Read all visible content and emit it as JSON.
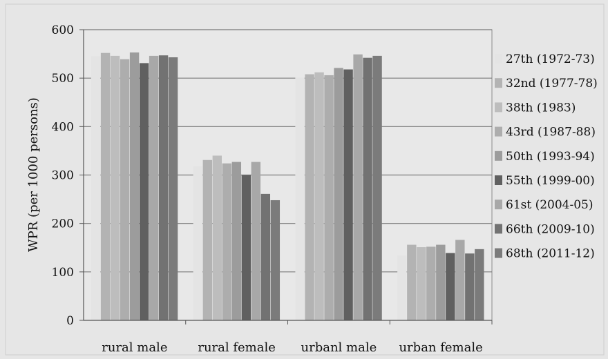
{
  "chart_data": {
    "type": "bar",
    "ylabel": "WPR (per 1000 persons)",
    "xlabel": "",
    "ylim": [
      0,
      600
    ],
    "yticks": [
      0,
      100,
      200,
      300,
      400,
      500,
      600
    ],
    "grid": true,
    "legend_position": "right",
    "categories": [
      "rural male",
      "rural female",
      "urbanl male",
      "urban female"
    ],
    "series": [
      {
        "name": "27th (1972-73)",
        "color": "#e4e4e4",
        "values": [
          545,
          318,
          501,
          134
        ]
      },
      {
        "name": "32nd (1977-78)",
        "color": "#b3b3b3",
        "values": [
          552,
          331,
          508,
          156
        ]
      },
      {
        "name": "38th (1983)",
        "color": "#bdbdbd",
        "values": [
          546,
          340,
          512,
          151
        ]
      },
      {
        "name": "43rd  (1987-88)",
        "color": "#adadad",
        "values": [
          539,
          324,
          506,
          152
        ]
      },
      {
        "name": "50th (1993-94)",
        "color": "#9c9c9c",
        "values": [
          553,
          327,
          521,
          156
        ]
      },
      {
        "name": "55th (1999-00)",
        "color": "#606060",
        "values": [
          531,
          300,
          518,
          139
        ]
      },
      {
        "name": "61st (2004-05)",
        "color": "#a8a8a8",
        "values": [
          546,
          327,
          549,
          166
        ]
      },
      {
        "name": "66th  (2009-10)",
        "color": "#727272",
        "values": [
          547,
          261,
          542,
          138
        ]
      },
      {
        "name": "68th  (2011-12)",
        "color": "#7b7b7b",
        "values": [
          543,
          248,
          546,
          147
        ]
      }
    ]
  }
}
